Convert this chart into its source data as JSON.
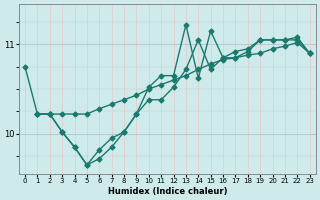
{
  "title": "",
  "xlabel": "Humidex (Indice chaleur)",
  "ylabel": "",
  "bg_color": "#ceeaea",
  "line_color": "#1a7a6e",
  "xlim": [
    -0.5,
    23.5
  ],
  "ylim": [
    9.55,
    11.45
  ],
  "yticks": [
    10,
    11
  ],
  "xticks": [
    0,
    1,
    2,
    3,
    4,
    5,
    6,
    7,
    8,
    9,
    10,
    11,
    12,
    13,
    14,
    15,
    16,
    17,
    18,
    19,
    20,
    21,
    22,
    23
  ],
  "series1_x": [
    0,
    1,
    2,
    3,
    4,
    5,
    6,
    7,
    8,
    9,
    10,
    11,
    12,
    13,
    14,
    15,
    16,
    17,
    18,
    19,
    20,
    21,
    22,
    23
  ],
  "series1_y": [
    10.75,
    10.22,
    10.22,
    10.02,
    9.85,
    9.65,
    9.82,
    9.95,
    10.02,
    10.22,
    10.52,
    10.65,
    10.65,
    11.22,
    10.62,
    11.15,
    10.85,
    10.85,
    10.92,
    11.05,
    11.05,
    11.05,
    11.05,
    10.9
  ],
  "series2_x": [
    1,
    2,
    3,
    4,
    5,
    6,
    7,
    8,
    9,
    10,
    11,
    12,
    13,
    14,
    15,
    16,
    17,
    18,
    19,
    20,
    21,
    22,
    23
  ],
  "series2_y": [
    10.22,
    10.22,
    10.22,
    10.22,
    10.22,
    10.28,
    10.33,
    10.38,
    10.43,
    10.5,
    10.55,
    10.6,
    10.65,
    10.72,
    10.78,
    10.83,
    10.85,
    10.88,
    10.9,
    10.95,
    10.98,
    11.02,
    10.9
  ],
  "series3_x": [
    1,
    2,
    3,
    4,
    5,
    6,
    7,
    8,
    9,
    10,
    11,
    12,
    13,
    14,
    15,
    16,
    17,
    18,
    19,
    20,
    21,
    22,
    23
  ],
  "series3_y": [
    10.22,
    10.22,
    10.02,
    9.85,
    9.65,
    9.72,
    9.85,
    10.02,
    10.22,
    10.38,
    10.38,
    10.52,
    10.72,
    11.05,
    10.72,
    10.85,
    10.92,
    10.95,
    11.05,
    11.05,
    11.05,
    11.08,
    10.9
  ],
  "marker_size": 2.5,
  "line_width": 1.0
}
